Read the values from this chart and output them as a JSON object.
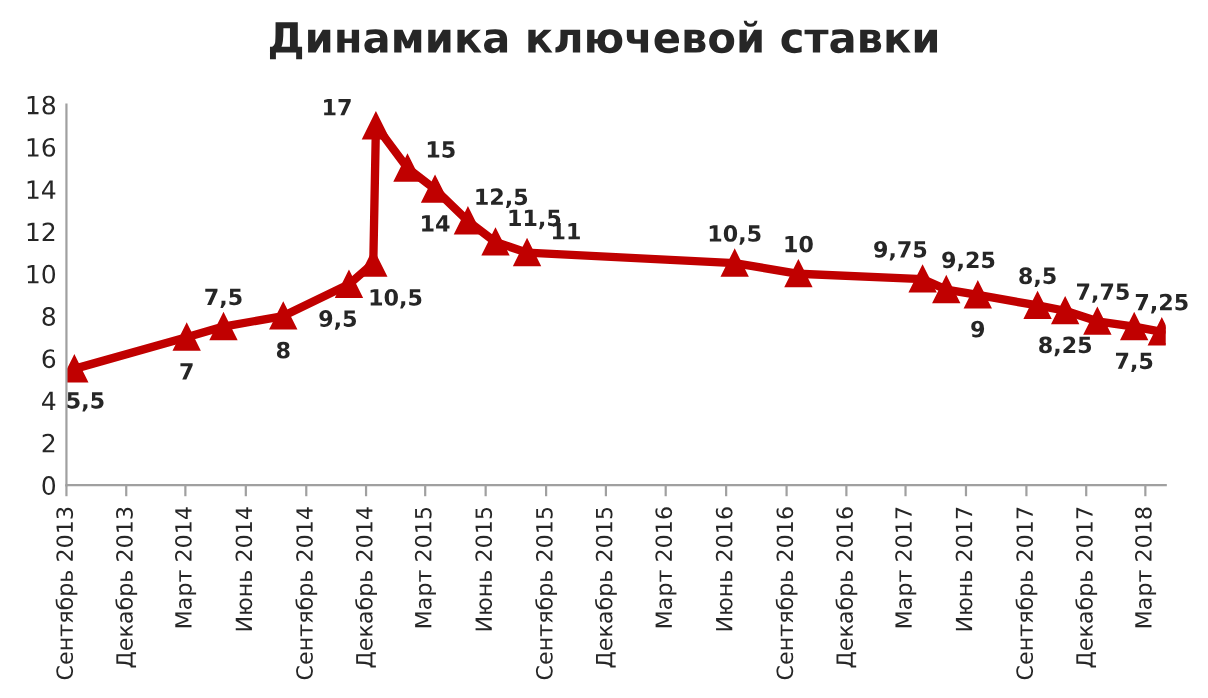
{
  "chart_data": {
    "type": "line",
    "title": "Динамика ключевой ставки",
    "x": [
      "2013-09-13",
      "2014-03-03",
      "2014-04-28",
      "2014-07-28",
      "2014-11-05",
      "2014-12-12",
      "2014-12-16",
      "2015-02-02",
      "2015-03-16",
      "2015-05-05",
      "2015-06-16",
      "2015-08-03",
      "2016-06-14",
      "2016-09-19",
      "2017-03-27",
      "2017-05-02",
      "2017-06-19",
      "2017-09-18",
      "2017-10-30",
      "2017-12-18",
      "2018-02-12",
      "2018-03-26"
    ],
    "series": [
      {
        "color": "#c00000",
        "values": [
          5.5,
          7,
          7.5,
          8,
          9.5,
          10.5,
          17,
          15,
          14,
          12.5,
          11.5,
          11,
          10.5,
          10,
          9.75,
          9.25,
          9,
          8.5,
          8.25,
          7.75,
          7.5,
          7.25
        ],
        "value_labels": [
          "5,5",
          "7",
          "7,5",
          "8",
          "9,5",
          "10,5",
          "17",
          "15",
          "14",
          "12,5",
          "11,5",
          "11",
          "10,5",
          "10",
          "9,75",
          "9,25",
          "9",
          "8,5",
          "8,25",
          "7,75",
          "7,5",
          "7,25"
        ]
      }
    ],
    "xlim": [
      "2013-09-01",
      "2018-04-01"
    ],
    "xticks": [
      {
        "value": "2013-09-01",
        "label": "Сентябрь 2013"
      },
      {
        "value": "2013-12-01",
        "label": "Декабрь 2013"
      },
      {
        "value": "2014-03-01",
        "label": "Март 2014"
      },
      {
        "value": "2014-06-01",
        "label": "Июнь 2014"
      },
      {
        "value": "2014-09-01",
        "label": "Сентябрь 2014"
      },
      {
        "value": "2014-12-01",
        "label": "Декабрь 2014"
      },
      {
        "value": "2015-03-01",
        "label": "Март 2015"
      },
      {
        "value": "2015-06-01",
        "label": "Июнь 2015"
      },
      {
        "value": "2015-09-01",
        "label": "Сентябрь 2015"
      },
      {
        "value": "2015-12-01",
        "label": "Декабрь 2015"
      },
      {
        "value": "2016-03-01",
        "label": "Март 2016"
      },
      {
        "value": "2016-06-01",
        "label": "Июнь 2016"
      },
      {
        "value": "2016-09-01",
        "label": "Сентябрь 2016"
      },
      {
        "value": "2016-12-01",
        "label": "Декабрь 2016"
      },
      {
        "value": "2017-03-01",
        "label": "Март 2017"
      },
      {
        "value": "2017-06-01",
        "label": "Июнь 2017"
      },
      {
        "value": "2017-09-01",
        "label": "Сентябрь 2017"
      },
      {
        "value": "2017-12-01",
        "label": "Декабрь 2017"
      },
      {
        "value": "2018-03-01",
        "label": "Март 2018"
      }
    ],
    "ylim": [
      0,
      18
    ],
    "yticks": [
      0,
      2,
      4,
      6,
      8,
      10,
      12,
      14,
      16,
      18
    ],
    "marker": "triangle",
    "line_style": "solid",
    "grid": false,
    "legend": false
  }
}
